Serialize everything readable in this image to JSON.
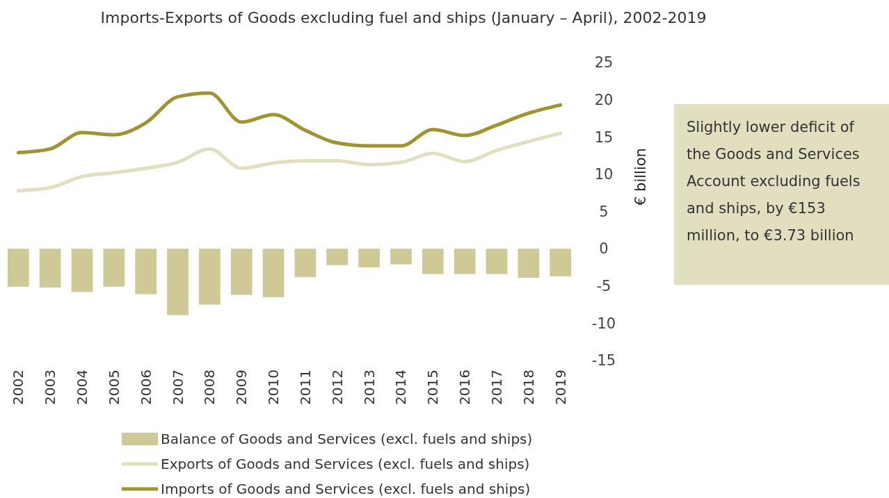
{
  "chart_data": {
    "type": "bar",
    "title": "Imports-Exports of Goods excluding fuel and ships (January – April), 2002-2019",
    "ylabel": "€ billion",
    "categories": [
      "2002",
      "2003",
      "2004",
      "2005",
      "2006",
      "2007",
      "2008",
      "2009",
      "2010",
      "2011",
      "2012",
      "2013",
      "2014",
      "2015",
      "2016",
      "2017",
      "2018",
      "2019"
    ],
    "series": [
      {
        "name": "Balance of Goods and Services (excl. fuels and ships)",
        "color": "#cfc998",
        "values": [
          -5.1,
          -5.2,
          -5.8,
          -5.1,
          -6.1,
          -8.9,
          -7.5,
          -6.2,
          -6.5,
          -3.8,
          -2.2,
          -2.5,
          -2.1,
          -3.4,
          -3.4,
          -3.4,
          -3.9,
          -3.7
        ]
      },
      {
        "name": "Exports of Goods and Services (excl. fuels and ships)",
        "type": "line",
        "color": "#e2dfc1",
        "values": [
          7.8,
          8.2,
          9.7,
          10.2,
          10.8,
          11.6,
          13.4,
          10.8,
          11.5,
          11.8,
          11.8,
          11.3,
          11.6,
          12.8,
          11.7,
          13.2,
          14.4,
          15.5
        ]
      },
      {
        "name": "Imports of Goods and Services (excl. fuels and ships)",
        "type": "line",
        "color": "#a09432",
        "values": [
          12.9,
          13.4,
          15.6,
          15.3,
          16.9,
          20.4,
          20.9,
          17.0,
          18.0,
          15.9,
          14.2,
          13.8,
          13.8,
          16.0,
          15.2,
          16.6,
          18.2,
          19.3
        ]
      }
    ],
    "ylim": [
      -15,
      25
    ],
    "yticks": [
      -15,
      -10,
      -5,
      0,
      5,
      10,
      15,
      20,
      25
    ],
    "grid": false,
    "legend": "bottom",
    "annotations": [
      "Slightly lower deficit of the Goods and Services Account excluding fuels and ships, by €153 million, to €3.73 billion"
    ]
  }
}
